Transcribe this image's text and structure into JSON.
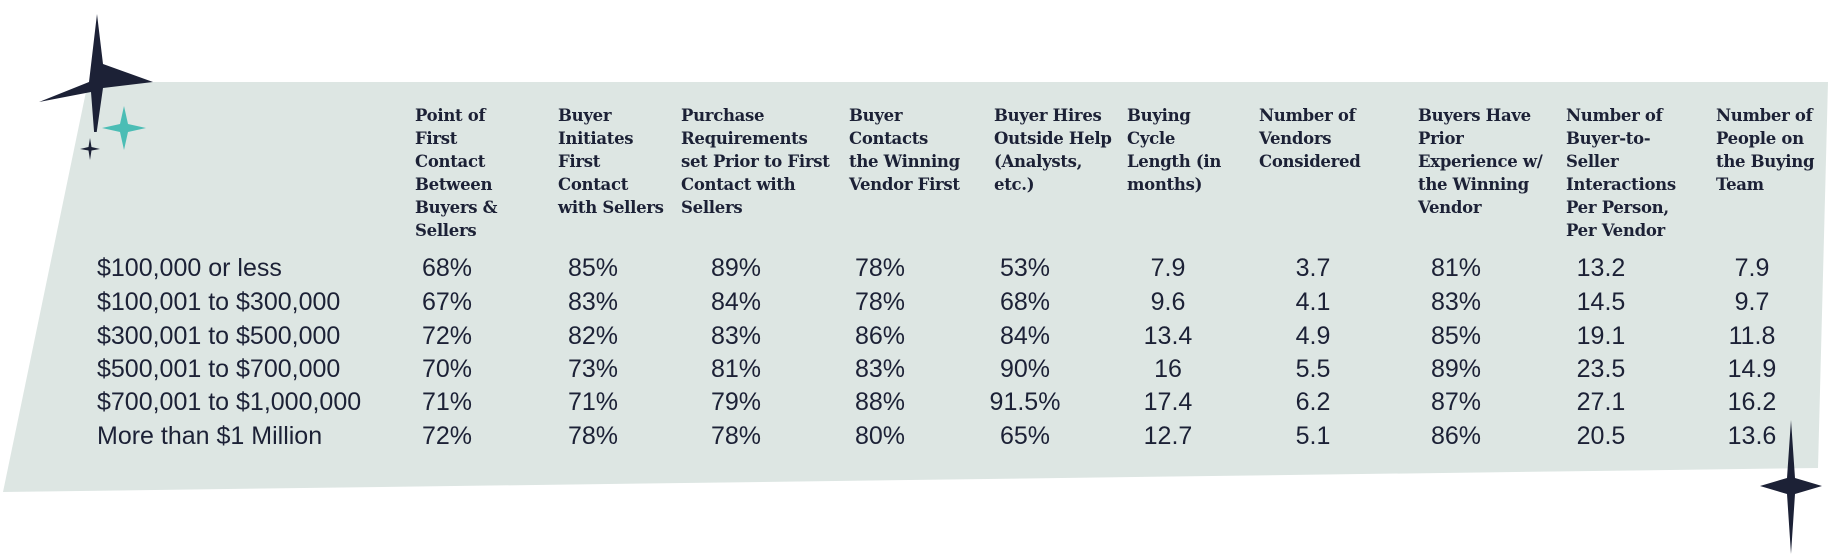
{
  "colors": {
    "panel": "#dde6e3",
    "text": "#1c2136",
    "star_dark": "#1c2136",
    "star_teal": "#4bbdb5"
  },
  "icons": [
    "sparkle-star-icon",
    "teal-sparkle-icon",
    "small-sparkle-icon"
  ],
  "chart_data": {
    "type": "table",
    "columns": [
      "Point of First Contact Between Buyers & Sellers",
      "Buyer Initiates First Contact with Sellers",
      "Purchase Requirements set Prior to First Contact with Sellers",
      "Buyer Contacts the Winning Vendor First",
      "Buyer Hires Outside Help (Analysts, etc.)",
      "Buying Cycle Length (in months)",
      "Number of Vendors Considered",
      "Buyers Have Prior Experience w/ the Winning Vendor",
      "Number of Buyer-to-Seller Interactions Per Person, Per Vendor",
      "Number of People on the Buying Team"
    ],
    "rows": [
      {
        "label": "$100,000 or less",
        "values": [
          "68%",
          "85%",
          "89%",
          "78%",
          "53%",
          "7.9",
          "3.7",
          "81%",
          "13.2",
          "7.9"
        ]
      },
      {
        "label": "$100,001 to $300,000",
        "values": [
          "67%",
          "83%",
          "84%",
          "78%",
          "68%",
          "9.6",
          "4.1",
          "83%",
          "14.5",
          "9.7"
        ]
      },
      {
        "label": "$300,001 to $500,000",
        "values": [
          "72%",
          "82%",
          "83%",
          "86%",
          "84%",
          "13.4",
          "4.9",
          "85%",
          "19.1",
          "11.8"
        ]
      },
      {
        "label": "$500,001 to $700,000",
        "values": [
          "70%",
          "73%",
          "81%",
          "83%",
          "90%",
          "16",
          "5.5",
          "89%",
          "23.5",
          "14.9"
        ]
      },
      {
        "label": "$700,001 to $1,000,000",
        "values": [
          "71%",
          "71%",
          "79%",
          "88%",
          "91.5%",
          "17.4",
          "6.2",
          "87%",
          "27.1",
          "16.2"
        ]
      },
      {
        "label": "More than $1 Million",
        "values": [
          "72%",
          "78%",
          "78%",
          "80%",
          "65%",
          "12.7",
          "5.1",
          "86%",
          "20.5",
          "13.6"
        ]
      }
    ]
  }
}
